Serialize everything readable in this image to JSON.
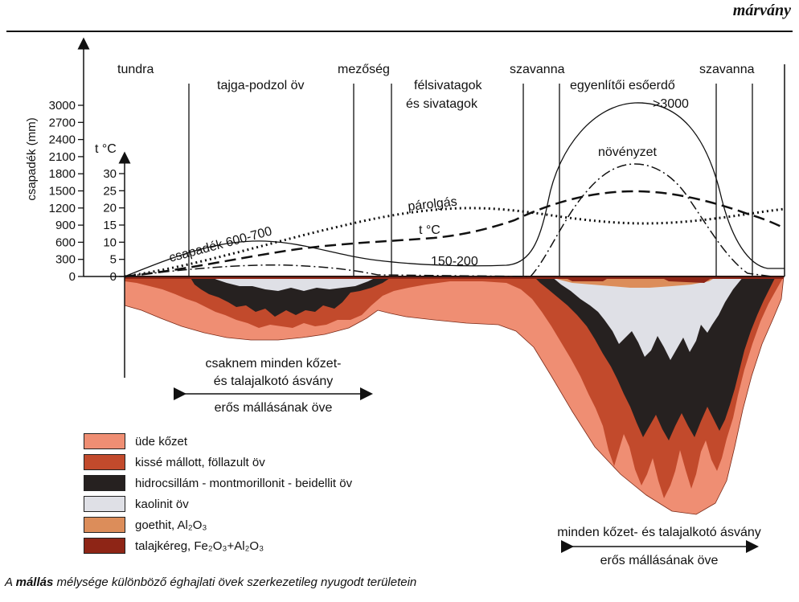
{
  "header": {
    "title": "márvány"
  },
  "axes": {
    "precip_label": "csapadék (mm)",
    "precip_ticks": [
      "3000",
      "2700",
      "2400",
      "2100",
      "1800",
      "1500",
      "1200",
      "900",
      "600",
      "300",
      "0"
    ],
    "temp_label": "t °C",
    "temp_ticks": [
      "30",
      "25",
      "20",
      "15",
      "10",
      "5",
      "0"
    ]
  },
  "zones": {
    "tundra": "tundra",
    "tajga": "tajga-podzol öv",
    "mezoseg": "mezőség",
    "felsivatag_1": "félsivatagok",
    "felsivatag_2": "és sivatagok",
    "szavanna_left": "szavanna",
    "esoerdo_1": "egyenlítői esőerdő",
    "esoerdo_2": ">3000",
    "szavanna_right": "szavanna"
  },
  "curve_labels": {
    "csapadek": "csapadék 600-700",
    "parolgas": "párolgás",
    "homerseklet": "t °C",
    "novenyzet": "növényzet",
    "desert_precip": "150-200"
  },
  "annotations": {
    "left_1": "csaknem minden kőzet-",
    "left_2": "és talajalkotó ásvány",
    "left_3": "erős mállásának öve",
    "right_1": "minden kőzet- és talajalkotó ásvány",
    "right_2": "erős mállásának öve"
  },
  "legend": [
    {
      "label": "üde kőzet",
      "color": "#ef8e73"
    },
    {
      "label": "kissé mállott, föllazult öv",
      "color": "#c24a2c"
    },
    {
      "label": "hidrocsillám - montmorillonit - beidellit öv",
      "color": "#262120"
    },
    {
      "label": "kaolinit öv",
      "color": "#dfe0e6"
    },
    {
      "label": "goethit, Al₂O₃",
      "color": "#dc8d5a"
    },
    {
      "label": "talajkéreg, Fe₂O₃+Al₂O₃",
      "color": "#8e2516"
    }
  ],
  "caption": {
    "prefix": "A ",
    "bold": "mállás",
    "suffix": " mélysége különböző éghajlati övek szerkezetileg nyugodt területein"
  }
}
